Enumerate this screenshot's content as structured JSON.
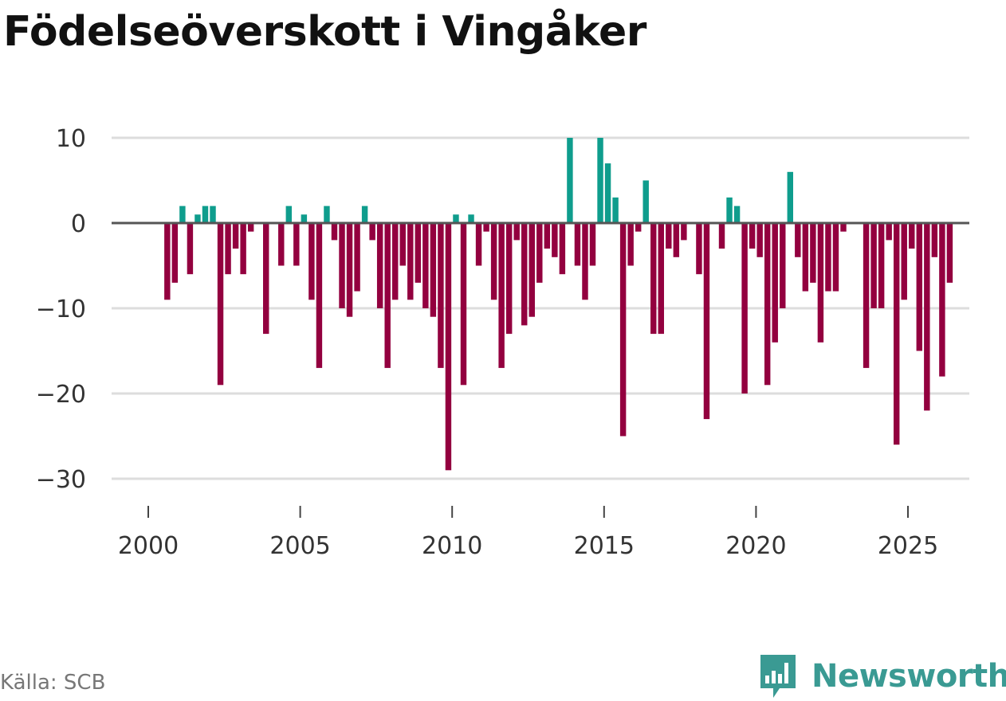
{
  "title": "Födelseöverskott i Vingåker",
  "source": "Källa: SCB",
  "brand": {
    "name": "Newsworthy",
    "icon": "newsworthy-logo-icon",
    "color": "#3a9a93"
  },
  "colors": {
    "positive": "#0f9d8d",
    "negative": "#93003f",
    "grid": "#dddddd",
    "zero_line": "#555555"
  },
  "chart_data": {
    "type": "bar",
    "title": "Födelseöverskott i Vingåker",
    "xlabel": "",
    "ylabel": "",
    "ylim": [
      -33,
      10
    ],
    "xlim": [
      1999.8,
      2026.7
    ],
    "y_ticks": [
      10,
      0,
      -10,
      -20,
      -30
    ],
    "y_tick_labels": [
      "10",
      "0",
      "−10",
      "−20",
      "−30"
    ],
    "x_ticks": [
      2000,
      2005,
      2010,
      2015,
      2020,
      2025
    ],
    "x_tick_labels": [
      "2000",
      "2005",
      "2010",
      "2015",
      "2020",
      "2025"
    ],
    "bar_period": "quarterly",
    "start_year": 2000,
    "values": [
      0,
      0,
      -9,
      -7,
      2,
      -6,
      1,
      2,
      2,
      -19,
      -6,
      -3,
      -6,
      -1,
      0,
      -13,
      0,
      -5,
      2,
      -5,
      1,
      -9,
      -17,
      2,
      -2,
      -10,
      -11,
      -8,
      2,
      -2,
      -10,
      -17,
      -9,
      -5,
      -9,
      -7,
      -10,
      -11,
      -17,
      -29,
      1,
      -19,
      1,
      -5,
      -1,
      -9,
      -17,
      -13,
      -2,
      -12,
      -11,
      -7,
      -3,
      -4,
      -6,
      10,
      -5,
      -9,
      -5,
      10,
      7,
      3,
      -25,
      -5,
      -1,
      5,
      -13,
      -13,
      -3,
      -4,
      -2,
      0,
      -6,
      -23,
      0,
      -3,
      3,
      2,
      -20,
      -3,
      -4,
      -19,
      -14,
      -10,
      6,
      -4,
      -8,
      -7,
      -14,
      -8,
      -8,
      -1,
      0,
      0,
      -17,
      -10,
      -10,
      -2,
      -26,
      -9,
      -3,
      -15,
      -22,
      -4,
      -18,
      -7
    ]
  }
}
